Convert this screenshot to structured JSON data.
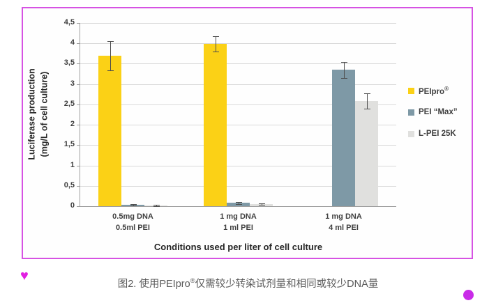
{
  "figure": {
    "border_color": "#D653E3",
    "background": "#FFFFFF"
  },
  "chart_data": {
    "type": "bar",
    "title": "",
    "ylabel_lines": [
      "Luciferase production",
      "(mg/L of cell culture)"
    ],
    "xlabel": "Conditions used per liter of cell culture",
    "ylim": [
      0,
      4.5
    ],
    "ytick_step": 0.5,
    "ytick_labels": [
      "0",
      "0,5",
      "1",
      "1,5",
      "2",
      "2,5",
      "3",
      "3,5",
      "4",
      "4,5"
    ],
    "grid": true,
    "legend_position": "right",
    "categories": [
      [
        "0.5mg DNA",
        "0.5ml PEI"
      ],
      [
        "1 mg DNA",
        "1 ml PEI"
      ],
      [
        "1 mg DNA",
        "4 ml PEI"
      ]
    ],
    "series": [
      {
        "name": "PEIpro®",
        "color": "#FBD116",
        "values": [
          3.7,
          3.98,
          0
        ],
        "errors": [
          0.36,
          0.19,
          0
        ]
      },
      {
        "name": "PEI “Max”",
        "color": "#7E99A6",
        "values": [
          0.03,
          0.08,
          3.35
        ],
        "errors": [
          0.02,
          0.03,
          0.2
        ]
      },
      {
        "name": "L-PEI 25K",
        "color": "#E0E0DE",
        "values": [
          0.02,
          0.05,
          2.58
        ],
        "errors": [
          0.02,
          0.02,
          0.19
        ]
      }
    ],
    "gridline_color": "#D9D9D9",
    "axis_color": "#9E9E9E",
    "error_bar_color": "#4D4D4D",
    "text_color": "#3F3F3F"
  },
  "caption": {
    "prefix": "图2. 使用PEIpro",
    "sup": "®",
    "suffix": "仅需较少转染试剂量和相同或较少DNA量"
  },
  "decorations": {
    "heart_glyph": "♥",
    "heart_color": "#E21FE2",
    "dot_color": "#C92BE8"
  }
}
